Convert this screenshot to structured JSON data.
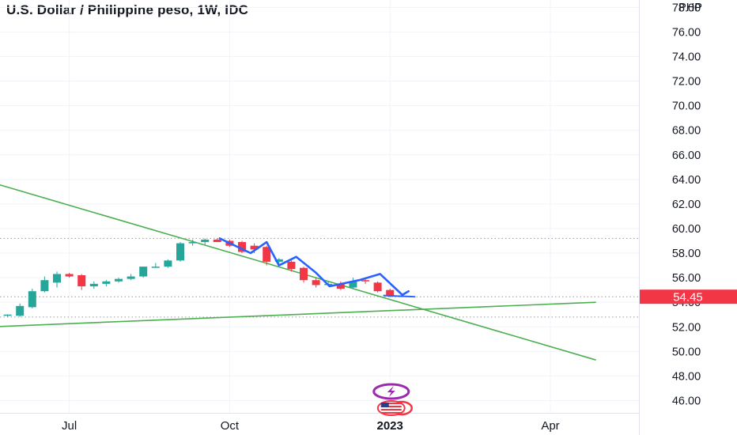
{
  "chart_data": {
    "type": "candlestick",
    "title": "U.S. Dollar / Philippine peso, 1W, IDC",
    "currency": "PHP",
    "ylim": [
      45,
      78.6
    ],
    "yticks": [
      46,
      48,
      50,
      52,
      54,
      56,
      58,
      60,
      62,
      64,
      66,
      68,
      70,
      72,
      74,
      76,
      78
    ],
    "ytick_labels": [
      "46.00",
      "48.00",
      "50.00",
      "52.00",
      "54.00",
      "56.00",
      "58.00",
      "60.00",
      "62.00",
      "64.00",
      "66.00",
      "68.00",
      "70.00",
      "72.00",
      "74.00",
      "76.00",
      "78.00"
    ],
    "xticks": [
      {
        "label": "Jul",
        "week": 5,
        "bold": false
      },
      {
        "label": "Oct",
        "week": 18,
        "bold": false
      },
      {
        "label": "2023",
        "week": 31,
        "bold": true
      },
      {
        "label": "Apr",
        "week": 44,
        "bold": false
      }
    ],
    "last_price": 54.45,
    "last_price_label": "54.45",
    "dotted_levels": [
      59.2,
      54.45,
      52.8
    ],
    "candles": [
      {
        "o": 52.9,
        "h": 53.0,
        "l": 52.8,
        "c": 53.0
      },
      {
        "o": 52.9,
        "h": 53.9,
        "l": 52.8,
        "c": 53.7
      },
      {
        "o": 53.6,
        "h": 55.1,
        "l": 53.5,
        "c": 54.9
      },
      {
        "o": 54.9,
        "h": 56.1,
        "l": 54.8,
        "c": 55.8
      },
      {
        "o": 55.6,
        "h": 56.5,
        "l": 55.2,
        "c": 56.3
      },
      {
        "o": 56.3,
        "h": 56.4,
        "l": 56.0,
        "c": 56.1
      },
      {
        "o": 56.2,
        "h": 56.3,
        "l": 55.0,
        "c": 55.3
      },
      {
        "o": 55.3,
        "h": 55.7,
        "l": 55.1,
        "c": 55.5
      },
      {
        "o": 55.5,
        "h": 55.8,
        "l": 55.3,
        "c": 55.7
      },
      {
        "o": 55.7,
        "h": 56.0,
        "l": 55.6,
        "c": 55.9
      },
      {
        "o": 55.9,
        "h": 56.3,
        "l": 55.8,
        "c": 56.1
      },
      {
        "o": 56.1,
        "h": 56.9,
        "l": 56.0,
        "c": 56.9
      },
      {
        "o": 56.9,
        "h": 57.2,
        "l": 56.8,
        "c": 56.9
      },
      {
        "o": 56.9,
        "h": 57.5,
        "l": 56.8,
        "c": 57.4
      },
      {
        "o": 57.4,
        "h": 58.9,
        "l": 57.3,
        "c": 58.8
      },
      {
        "o": 58.8,
        "h": 59.1,
        "l": 58.6,
        "c": 58.9
      },
      {
        "o": 58.9,
        "h": 59.2,
        "l": 58.7,
        "c": 59.1
      },
      {
        "o": 59.1,
        "h": 59.2,
        "l": 58.9,
        "c": 58.9
      },
      {
        "o": 59.0,
        "h": 59.1,
        "l": 58.5,
        "c": 58.6
      },
      {
        "o": 58.9,
        "h": 59.0,
        "l": 58.0,
        "c": 58.1
      },
      {
        "o": 58.6,
        "h": 58.8,
        "l": 58.0,
        "c": 58.3
      },
      {
        "o": 58.5,
        "h": 58.6,
        "l": 57.0,
        "c": 57.3
      },
      {
        "o": 57.3,
        "h": 57.6,
        "l": 57.0,
        "c": 57.5
      },
      {
        "o": 57.3,
        "h": 57.4,
        "l": 56.5,
        "c": 56.7
      },
      {
        "o": 56.8,
        "h": 56.9,
        "l": 55.6,
        "c": 55.8
      },
      {
        "o": 55.8,
        "h": 56.0,
        "l": 55.2,
        "c": 55.4
      },
      {
        "o": 55.4,
        "h": 55.7,
        "l": 55.3,
        "c": 55.5
      },
      {
        "o": 55.5,
        "h": 55.7,
        "l": 55.0,
        "c": 55.1
      },
      {
        "o": 55.2,
        "h": 56.0,
        "l": 55.1,
        "c": 55.7
      },
      {
        "o": 55.8,
        "h": 55.9,
        "l": 55.5,
        "c": 55.7
      },
      {
        "o": 55.6,
        "h": 55.7,
        "l": 54.8,
        "c": 54.9
      },
      {
        "o": 55.0,
        "h": 55.1,
        "l": 54.4,
        "c": 54.5
      }
    ],
    "trendlines": [
      {
        "name": "descending",
        "points": [
          [
            -3.84,
            64.5
          ],
          [
            47.7,
            49.3
          ]
        ],
        "color": "#4caf50"
      },
      {
        "name": "ascending",
        "points": [
          [
            -3.84,
            51.9
          ],
          [
            47.7,
            54.0
          ]
        ],
        "color": "#4caf50"
      }
    ],
    "zigzag": {
      "color": "#2962ff",
      "points": [
        [
          17.2,
          59.2
        ],
        [
          19.7,
          58.0
        ],
        [
          21.0,
          58.9
        ],
        [
          22.0,
          57.0
        ],
        [
          23.4,
          57.7
        ],
        [
          25.0,
          56.4
        ],
        [
          26.1,
          55.3
        ],
        [
          28.5,
          55.8
        ],
        [
          30.2,
          56.3
        ],
        [
          32.0,
          54.6
        ],
        [
          32.5,
          54.9
        ]
      ]
    },
    "zigzag_tail": [
      [
        30.5,
        54.55
      ],
      [
        33.0,
        54.45
      ]
    ],
    "event_markers": [
      {
        "name": "lightning-event-icon",
        "week": 31.1,
        "color": "#9c27b0"
      },
      {
        "name": "us-flag-economic-event-icon",
        "week": 31.1,
        "color": "#f23645"
      }
    ],
    "colors": {
      "up": "#26a69a",
      "down": "#f23645",
      "price_tag": "#f23645",
      "grid": "#f0f3fa",
      "dotted": "#9598a1"
    }
  }
}
